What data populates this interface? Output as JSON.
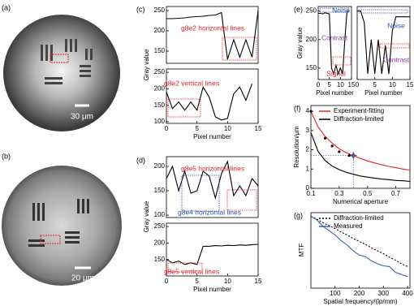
{
  "images": [
    {
      "panel": "(a)",
      "scale_bar": "30 μm"
    },
    {
      "panel": "(b)",
      "scale_bar": "20 μm"
    }
  ],
  "chart_data": [
    {
      "type": "line",
      "panel": "(c)",
      "ylabel": "Gray value",
      "x": [
        0,
        1,
        2,
        3,
        4,
        5,
        6,
        7,
        8,
        9,
        10,
        11,
        12,
        13,
        14,
        15
      ],
      "xlim": [
        0,
        15
      ],
      "ylim": [
        120,
        260
      ],
      "yticks": [
        150,
        200,
        250
      ],
      "series": [
        {
          "color": "#000000",
          "values": [
            230,
            230,
            231,
            232,
            234,
            235,
            236,
            238,
            239,
            245,
            130,
            178,
            135,
            178,
            135,
            250
          ]
        }
      ],
      "annotations": [
        {
          "text": "g8e2 horizontal lines",
          "color": "#e8202a"
        }
      ]
    },
    {
      "type": "line",
      "xlabel": "Pixel number",
      "x": [
        0,
        1,
        2,
        3,
        4,
        5,
        6,
        7,
        8,
        9,
        10,
        11,
        12,
        13,
        14,
        15
      ],
      "xlim": [
        0,
        15
      ],
      "ylim": [
        95,
        260
      ],
      "xticks": [
        0,
        5,
        10,
        15
      ],
      "yticks": [
        100,
        150,
        200,
        250
      ],
      "series": [
        {
          "color": "#000000",
          "values": [
            190,
            140,
            160,
            135,
            160,
            135,
            205,
            175,
            115,
            105,
            110,
            185,
            205,
            165,
            215,
            null
          ]
        }
      ],
      "annotations": [
        {
          "text": "g8e2 vertical lines",
          "color": "#e8202a"
        }
      ]
    },
    {
      "type": "line",
      "panel": "(d)",
      "ylabel": "Gray value",
      "x": [
        0,
        1,
        2,
        3,
        4,
        5,
        6,
        7,
        8,
        9,
        10,
        11,
        12,
        13,
        14,
        15
      ],
      "xlim": [
        0,
        15
      ],
      "ylim": [
        95,
        220
      ],
      "yticks": [
        100,
        150,
        200
      ],
      "series": [
        {
          "color": "#000000",
          "values": [
            175,
            200,
            150,
            190,
            145,
            150,
            190,
            180,
            135,
            185,
            210,
            140,
            160,
            140,
            175,
            160
          ]
        }
      ],
      "annotations": [
        {
          "text": "g8e5 horizontal lines",
          "color": "#e8202a"
        },
        {
          "text": "g8e4 horizontal lines",
          "color": "#2e4fa8"
        }
      ]
    },
    {
      "type": "line",
      "xlabel": "Pixel number",
      "x": [
        0,
        1,
        2,
        3,
        4,
        5,
        6,
        7,
        8,
        9,
        10,
        11,
        12,
        13,
        14,
        15
      ],
      "xlim": [
        0,
        15
      ],
      "ylim": [
        100,
        260
      ],
      "xticks": [
        0,
        5,
        10,
        15
      ],
      "yticks": [
        150,
        200,
        250
      ],
      "series": [
        {
          "color": "#000000",
          "values": [
            150,
            140,
            145,
            135,
            140,
            135,
            190,
            190,
            192,
            191,
            193,
            192,
            194,
            193,
            195,
            196
          ]
        }
      ],
      "annotations": [
        {
          "text": "g8e5 vertical lines",
          "color": "#e8202a"
        }
      ]
    },
    {
      "type": "line",
      "panel": "(e)",
      "ylabel": "Gray value",
      "xlabel": "Pixel number",
      "x": [
        0,
        1,
        2,
        3,
        4,
        5,
        6,
        7,
        8,
        9,
        10,
        11,
        12,
        13,
        14,
        15
      ],
      "xlim": [
        0,
        15
      ],
      "ylim": [
        130,
        258
      ],
      "xticks": [
        0,
        5,
        10,
        15
      ],
      "yticks": [
        150,
        200,
        250
      ],
      "series": [
        {
          "color": "#000000",
          "values": [
            246,
            246,
            245,
            247,
            246,
            245,
            150,
            140,
            155,
            140,
            150,
            140,
            200,
            250,
            250,
            null
          ]
        }
      ],
      "annotations": [
        {
          "text": "Noise",
          "color": "#2e4fa8"
        },
        {
          "text": "Contrast",
          "color": "#8a3fa0"
        },
        {
          "text": "Signal",
          "color": "#e8202a"
        }
      ]
    },
    {
      "type": "line",
      "xlabel": "Pixel number",
      "x": [
        0,
        1,
        2,
        3,
        4,
        5,
        6,
        7,
        8,
        9,
        10,
        11,
        12,
        13,
        14,
        15
      ],
      "xlim": [
        0,
        15
      ],
      "ylim": [
        130,
        258
      ],
      "xticks": [
        0,
        5,
        10,
        15
      ],
      "series": [
        {
          "color": "#000000",
          "values": [
            250,
            250,
            230,
            140,
            200,
            140,
            200,
            140,
            190,
            140,
            215,
            240,
            240,
            240,
            240,
            240
          ]
        }
      ],
      "annotations": [
        {
          "text": "Noise",
          "color": "#2e4fa8"
        },
        {
          "text": "Contrast",
          "color": "#8a3fa0"
        }
      ]
    },
    {
      "type": "line",
      "panel": "(f)",
      "ylabel": "Resolution/μm",
      "xlabel": "Numerical aperture",
      "legend": "upper right",
      "x": [
        0.1,
        0.15,
        0.2,
        0.25,
        0.3,
        0.35,
        0.4,
        0.45,
        0.5,
        0.55,
        0.6,
        0.65,
        0.7,
        0.75,
        0.8
      ],
      "xlim": [
        0.1,
        0.8
      ],
      "ylim": [
        0,
        4.3
      ],
      "xticks": [
        0.1,
        0.3,
        0.5,
        0.7
      ],
      "yticks": [
        0,
        1,
        2,
        3,
        4
      ],
      "series": [
        {
          "name": "Experiment-fitting",
          "color": "#e8202a",
          "values": [
            4.0,
            3.2,
            2.7,
            2.35,
            2.05,
            1.85,
            1.7,
            1.55,
            1.42,
            1.32,
            1.22,
            1.14,
            1.07,
            1.0,
            0.95
          ]
        },
        {
          "name": "Diffraction-limited",
          "color": "#000000",
          "values": [
            2.9,
            1.93,
            1.45,
            1.16,
            0.97,
            0.83,
            0.73,
            0.64,
            0.58,
            0.53,
            0.48,
            0.45,
            0.41,
            0.39,
            0.36
          ]
        }
      ],
      "points_x": [
        0.1,
        0.2,
        0.25,
        0.3,
        0.37
      ],
      "points_y": [
        4.0,
        2.6,
        2.2,
        1.9,
        1.7
      ],
      "highlight_x": 0.4,
      "highlight_y": 1.7
    },
    {
      "type": "line",
      "panel": "(g)",
      "ylabel": "MTF",
      "xlabel": "Spatial frequency/(lp/mm)",
      "legend": "upper right",
      "x": [
        0,
        25,
        50,
        75,
        100,
        125,
        150,
        175,
        200,
        225,
        250,
        275,
        300,
        325,
        350,
        375,
        400
      ],
      "xlim": [
        0,
        410
      ],
      "ylim": [
        0,
        1.05
      ],
      "xticks": [
        100,
        200,
        300,
        400
      ],
      "series": [
        {
          "name": "Diffraction-limited",
          "color": "#000000",
          "dashed": true,
          "values": [
            1.0,
            0.96,
            0.91,
            0.87,
            0.83,
            0.78,
            0.74,
            0.69,
            0.65,
            0.61,
            0.56,
            0.52,
            0.48,
            0.43,
            0.39,
            0.34,
            0.3
          ]
        },
        {
          "name": "Measured",
          "color": "#3a5fb0",
          "values": [
            1.0,
            0.95,
            0.86,
            0.8,
            0.74,
            0.66,
            0.6,
            0.52,
            0.46,
            0.44,
            0.38,
            0.34,
            0.31,
            0.3,
            0.22,
            0.19,
            0.16
          ]
        }
      ]
    }
  ]
}
